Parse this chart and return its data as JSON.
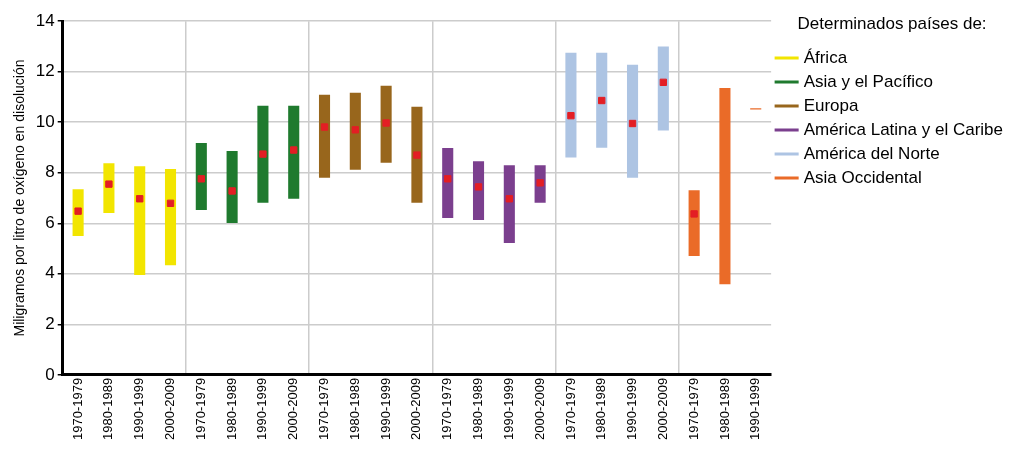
{
  "chart_data": {
    "type": "bar",
    "ylabel": "Miligramos por litro de oxígeno en disolución",
    "legend_title": "Determinados países de:",
    "legend": "right",
    "grid": true,
    "categories": [
      "1970-1979",
      "1980-1989",
      "1990-1999",
      "2000-2009",
      "1970-1979",
      "1980-1989",
      "1990-1999",
      "2000-2009",
      "1970-1979",
      "1980-1989",
      "1990-1999",
      "2000-2009",
      "1970-1979",
      "1980-1989",
      "1990-1999",
      "2000-2009",
      "1970-1979",
      "1980-1989",
      "1990-1999",
      "2000-2009",
      "1970-1979",
      "1980-1989",
      "1990-1999"
    ],
    "ylim": [
      0,
      14
    ],
    "yticks": [
      0,
      2,
      4,
      6,
      8,
      10,
      12,
      14
    ],
    "series": [
      {
        "name": "África",
        "color": "#f2e500",
        "base": [
          5.5,
          6.41,
          3.95,
          4.34,
          null,
          null,
          null,
          null,
          null,
          null,
          null,
          null,
          null,
          null,
          null,
          null,
          null,
          null,
          null,
          null,
          null,
          null,
          null
        ],
        "values": [
          1.85,
          1.97,
          4.31,
          3.81,
          null,
          null,
          null,
          null,
          null,
          null,
          null,
          null,
          null,
          null,
          null,
          null,
          null,
          null,
          null,
          null,
          null,
          null,
          null
        ]
      },
      {
        "name": "Asia y el Pacífico",
        "color": "#1f7a2e",
        "base": [
          null,
          null,
          null,
          null,
          6.53,
          6.01,
          6.81,
          6.97,
          null,
          null,
          null,
          null,
          null,
          null,
          null,
          null,
          null,
          null,
          null,
          null,
          null,
          null,
          null
        ],
        "values": [
          null,
          null,
          null,
          null,
          2.65,
          2.85,
          3.84,
          3.68,
          null,
          null,
          null,
          null,
          null,
          null,
          null,
          null,
          null,
          null,
          null,
          null,
          null,
          null,
          null
        ]
      },
      {
        "name": "Europa",
        "color": "#98661c",
        "base": [
          null,
          null,
          null,
          null,
          null,
          null,
          null,
          null,
          7.8,
          8.12,
          8.4,
          6.81,
          null,
          null,
          null,
          null,
          null,
          null,
          null,
          null,
          null,
          null,
          null
        ],
        "values": [
          null,
          null,
          null,
          null,
          null,
          null,
          null,
          null,
          3.29,
          3.05,
          3.04,
          3.8,
          null,
          null,
          null,
          null,
          null,
          null,
          null,
          null,
          null,
          null,
          null
        ]
      },
      {
        "name": "América Latina y el Caribe",
        "color": "#7b3f8e",
        "base": [
          null,
          null,
          null,
          null,
          null,
          null,
          null,
          null,
          null,
          null,
          null,
          null,
          6.21,
          6.13,
          5.22,
          6.81,
          null,
          null,
          null,
          null,
          null,
          null,
          null
        ],
        "values": [
          null,
          null,
          null,
          null,
          null,
          null,
          null,
          null,
          null,
          null,
          null,
          null,
          2.77,
          2.33,
          3.08,
          1.49,
          null,
          null,
          null,
          null,
          null,
          null,
          null
        ]
      },
      {
        "name": "América del Norte",
        "color": "#adc4e3",
        "base": [
          null,
          null,
          null,
          null,
          null,
          null,
          null,
          null,
          null,
          null,
          null,
          null,
          null,
          null,
          null,
          null,
          8.6,
          8.99,
          7.8,
          9.67,
          null,
          null,
          null
        ],
        "values": [
          null,
          null,
          null,
          null,
          null,
          null,
          null,
          null,
          null,
          null,
          null,
          null,
          null,
          null,
          null,
          null,
          4.15,
          3.76,
          4.48,
          3.33,
          null,
          null,
          null
        ]
      },
      {
        "name": "Asia Occidental",
        "color": "#ea6b28",
        "base": [
          null,
          null,
          null,
          null,
          null,
          null,
          null,
          null,
          null,
          null,
          null,
          null,
          null,
          null,
          null,
          null,
          null,
          null,
          null,
          null,
          4.7,
          3.59,
          10.5
        ],
        "values": [
          null,
          null,
          null,
          null,
          null,
          null,
          null,
          null,
          null,
          null,
          null,
          null,
          null,
          null,
          null,
          null,
          null,
          null,
          null,
          null,
          2.61,
          7.77,
          0.05
        ]
      },
      {
        "type": "scatter",
        "color": "#e31e24",
        "marker": "square",
        "values": [
          6.48,
          7.55,
          6.97,
          6.79,
          7.76,
          7.28,
          8.74,
          8.9,
          9.81,
          9.7,
          9.97,
          8.7,
          7.76,
          7.44,
          6.97,
          7.6,
          10.26,
          10.86,
          9.95,
          11.58,
          6.37,
          null,
          null
        ]
      }
    ]
  }
}
